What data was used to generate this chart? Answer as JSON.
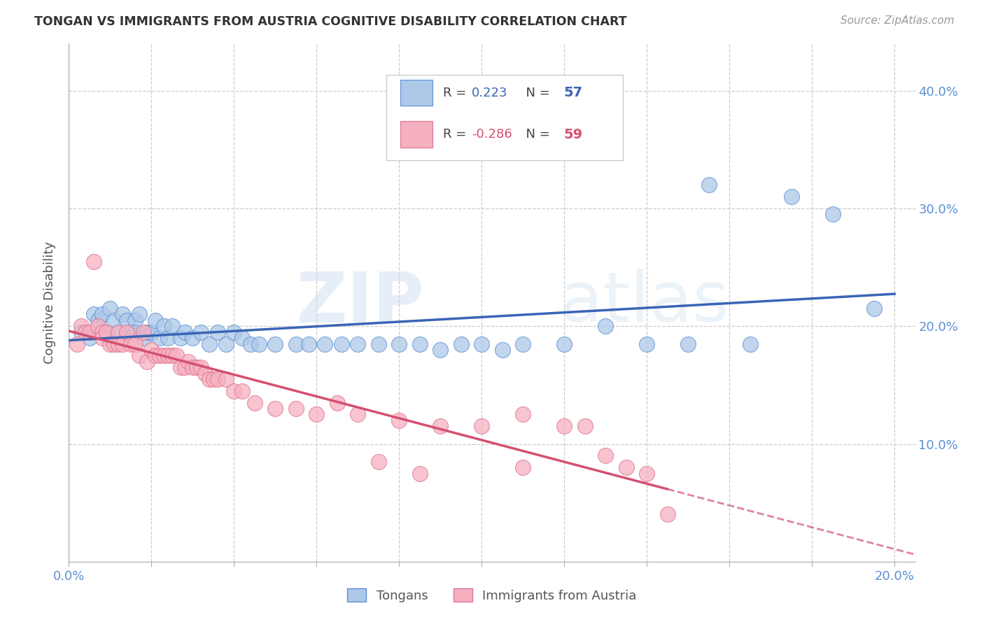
{
  "title": "TONGAN VS IMMIGRANTS FROM AUSTRIA COGNITIVE DISABILITY CORRELATION CHART",
  "source": "Source: ZipAtlas.com",
  "ylabel": "Cognitive Disability",
  "xlim": [
    0.0,
    0.205
  ],
  "ylim": [
    0.0,
    0.44
  ],
  "xticks": [
    0.0,
    0.02,
    0.04,
    0.06,
    0.08,
    0.1,
    0.12,
    0.14,
    0.16,
    0.18,
    0.2
  ],
  "yticks": [
    0.0,
    0.1,
    0.2,
    0.3,
    0.4
  ],
  "blue_R": "0.223",
  "blue_N": "57",
  "pink_R": "-0.286",
  "pink_N": "59",
  "blue_face_color": "#adc8e8",
  "blue_edge_color": "#5b8fd4",
  "pink_face_color": "#f5b0c0",
  "pink_edge_color": "#e07090",
  "blue_line_color": "#3a65b5",
  "pink_line_color": "#d45070",
  "tick_color": "#5b8fd4",
  "legend_label_blue": "Tongans",
  "legend_label_pink": "Immigrants from Austria",
  "watermark_zip": "ZIP",
  "watermark_atlas": "atlas",
  "blue_scatter_x": [
    0.003,
    0.005,
    0.006,
    0.007,
    0.008,
    0.009,
    0.01,
    0.011,
    0.012,
    0.013,
    0.014,
    0.015,
    0.016,
    0.016,
    0.017,
    0.018,
    0.019,
    0.02,
    0.021,
    0.022,
    0.023,
    0.024,
    0.025,
    0.027,
    0.028,
    0.03,
    0.032,
    0.034,
    0.036,
    0.038,
    0.04,
    0.042,
    0.044,
    0.046,
    0.05,
    0.055,
    0.058,
    0.062,
    0.066,
    0.07,
    0.075,
    0.08,
    0.085,
    0.09,
    0.095,
    0.1,
    0.105,
    0.11,
    0.12,
    0.13,
    0.14,
    0.15,
    0.155,
    0.165,
    0.175,
    0.185,
    0.195
  ],
  "blue_scatter_y": [
    0.195,
    0.19,
    0.21,
    0.205,
    0.21,
    0.195,
    0.215,
    0.205,
    0.195,
    0.21,
    0.205,
    0.195,
    0.205,
    0.195,
    0.21,
    0.19,
    0.195,
    0.195,
    0.205,
    0.19,
    0.2,
    0.19,
    0.2,
    0.19,
    0.195,
    0.19,
    0.195,
    0.185,
    0.195,
    0.185,
    0.195,
    0.19,
    0.185,
    0.185,
    0.185,
    0.185,
    0.185,
    0.185,
    0.185,
    0.185,
    0.185,
    0.185,
    0.185,
    0.18,
    0.185,
    0.185,
    0.18,
    0.185,
    0.185,
    0.2,
    0.185,
    0.185,
    0.32,
    0.185,
    0.31,
    0.295,
    0.215
  ],
  "pink_scatter_x": [
    0.002,
    0.003,
    0.004,
    0.005,
    0.006,
    0.007,
    0.008,
    0.008,
    0.009,
    0.01,
    0.011,
    0.012,
    0.012,
    0.013,
    0.014,
    0.015,
    0.016,
    0.017,
    0.018,
    0.019,
    0.02,
    0.021,
    0.022,
    0.023,
    0.024,
    0.025,
    0.026,
    0.027,
    0.028,
    0.029,
    0.03,
    0.031,
    0.032,
    0.033,
    0.034,
    0.035,
    0.036,
    0.038,
    0.04,
    0.042,
    0.045,
    0.05,
    0.055,
    0.06,
    0.07,
    0.08,
    0.09,
    0.1,
    0.11,
    0.12,
    0.125,
    0.13,
    0.135,
    0.14,
    0.145,
    0.11,
    0.065,
    0.075,
    0.085
  ],
  "pink_scatter_y": [
    0.185,
    0.2,
    0.195,
    0.195,
    0.255,
    0.2,
    0.195,
    0.19,
    0.195,
    0.185,
    0.185,
    0.195,
    0.185,
    0.185,
    0.195,
    0.185,
    0.185,
    0.175,
    0.195,
    0.17,
    0.18,
    0.175,
    0.175,
    0.175,
    0.175,
    0.175,
    0.175,
    0.165,
    0.165,
    0.17,
    0.165,
    0.165,
    0.165,
    0.16,
    0.155,
    0.155,
    0.155,
    0.155,
    0.145,
    0.145,
    0.135,
    0.13,
    0.13,
    0.125,
    0.125,
    0.12,
    0.115,
    0.115,
    0.125,
    0.115,
    0.115,
    0.09,
    0.08,
    0.075,
    0.04,
    0.08,
    0.135,
    0.085,
    0.075
  ]
}
